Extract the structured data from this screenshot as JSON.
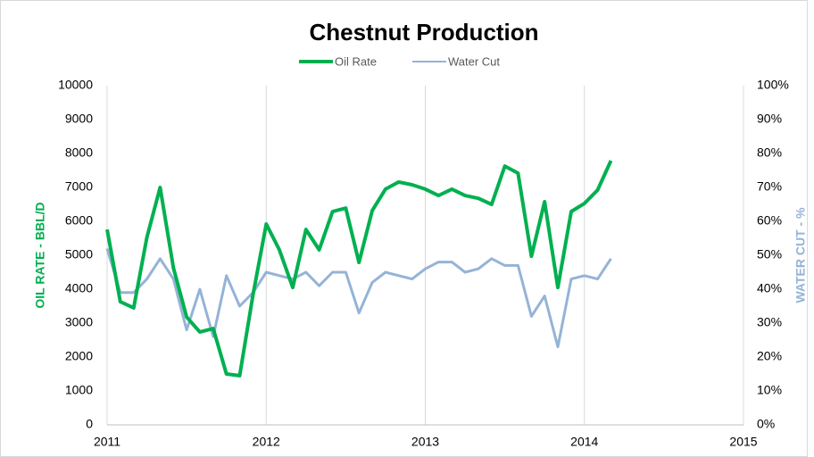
{
  "chart_data": {
    "type": "line",
    "title": "Chestnut Production",
    "x": [
      2011,
      2011.083,
      2011.167,
      2011.25,
      2011.333,
      2011.417,
      2011.5,
      2011.583,
      2011.667,
      2011.75,
      2011.833,
      2011.917,
      2012,
      2012.083,
      2012.167,
      2012.25,
      2012.333,
      2012.417,
      2012.5,
      2012.583,
      2012.667,
      2012.75,
      2012.833,
      2012.917,
      2013,
      2013.083,
      2013.167,
      2013.25,
      2013.333,
      2013.417,
      2013.5,
      2013.583,
      2013.667,
      2013.75,
      2013.833,
      2013.917,
      2014,
      2014.083,
      2014.167
    ],
    "series": [
      {
        "name": "Oil Rate",
        "color": "#00b050",
        "values": [
          5760,
          3630,
          3450,
          5530,
          7000,
          4630,
          3180,
          2740,
          2840,
          1500,
          1450,
          3840,
          5920,
          5160,
          4050,
          5760,
          5160,
          6290,
          6390,
          4790,
          6320,
          6950,
          7160,
          7080,
          6950,
          6760,
          6950,
          6760,
          6680,
          6500,
          7630,
          7420,
          4970,
          6580,
          4050,
          6290,
          6530,
          6920,
          7790
        ]
      },
      {
        "name": "Water Cut",
        "color": "#95b3d7",
        "axis": "y2",
        "values": [
          52,
          39,
          39,
          43,
          49,
          43,
          28,
          40,
          26,
          44,
          35,
          39,
          45,
          44,
          43,
          45,
          41,
          45,
          45,
          33,
          42,
          45,
          44,
          43,
          46,
          48,
          48,
          45,
          46,
          49,
          47,
          47,
          32,
          38,
          23,
          43,
          44,
          43,
          49
        ]
      }
    ],
    "ylabel": "OIL RATE - BBL/D",
    "y2label": "WATER CUT - %",
    "xlim": [
      2011,
      2015
    ],
    "xticks": [
      2011,
      2012,
      2013,
      2014,
      2015
    ],
    "ylim": [
      0,
      10000
    ],
    "yticks": [
      0,
      1000,
      2000,
      3000,
      4000,
      5000,
      6000,
      7000,
      8000,
      9000,
      10000
    ],
    "y2lim": [
      0,
      100
    ],
    "y2ticks": [
      {
        "value": 0,
        "label": "0%"
      },
      {
        "value": 10,
        "label": "10%"
      },
      {
        "value": 20,
        "label": "20%"
      },
      {
        "value": 30,
        "label": "30%"
      },
      {
        "value": 40,
        "label": "40%"
      },
      {
        "value": 50,
        "label": "50%"
      },
      {
        "value": 60,
        "label": "60%"
      },
      {
        "value": 70,
        "label": "70%"
      },
      {
        "value": 80,
        "label": "80%"
      },
      {
        "value": 90,
        "label": "90%"
      },
      {
        "value": 100,
        "label": "100%"
      }
    ],
    "grid": "x",
    "legend": "top"
  }
}
